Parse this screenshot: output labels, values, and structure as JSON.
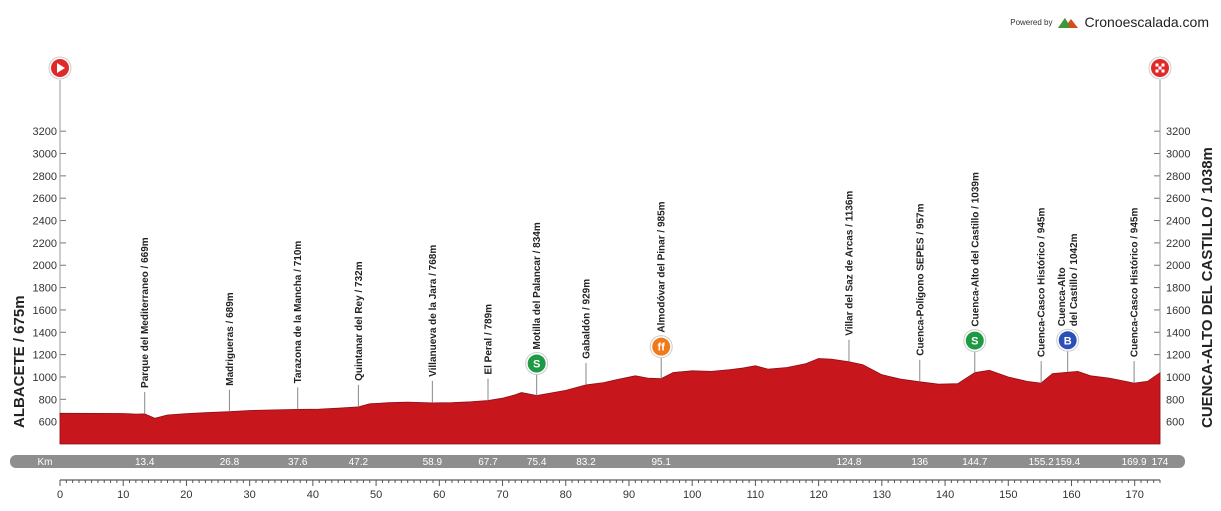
{
  "branding": {
    "powered_by": "Powered by",
    "site": "Cronoescalada.com"
  },
  "chart_data": {
    "type": "area",
    "title": "",
    "xlabel": "Km",
    "ylabel": "",
    "xlim": [
      0,
      174
    ],
    "ylim": [
      400,
      3300
    ],
    "x_ticks": [
      0,
      10,
      20,
      30,
      40,
      50,
      60,
      70,
      80,
      90,
      100,
      110,
      120,
      130,
      140,
      150,
      160,
      170
    ],
    "y_ticks": [
      600,
      800,
      1000,
      1200,
      1400,
      1600,
      1800,
      2000,
      2200,
      2400,
      2600,
      2800,
      3000,
      3200
    ],
    "fill_color": "#c8161d",
    "start_label": "ALBACETE / 675m",
    "finish_label": "CUENCA-ALTO DEL CASTILLO / 1038m",
    "km_axis_label": "Km",
    "km_markers": [
      {
        "km": 13.4,
        "label": "13.4"
      },
      {
        "km": 26.8,
        "label": "26.8"
      },
      {
        "km": 37.6,
        "label": "37.6"
      },
      {
        "km": 47.2,
        "label": "47.2"
      },
      {
        "km": 58.9,
        "label": "58.9"
      },
      {
        "km": 67.7,
        "label": "67.7"
      },
      {
        "km": 75.4,
        "label": "75.4"
      },
      {
        "km": 83.2,
        "label": "83.2"
      },
      {
        "km": 95.1,
        "label": "95.1"
      },
      {
        "km": 124.8,
        "label": "124.8"
      },
      {
        "km": 136,
        "label": "136"
      },
      {
        "km": 144.7,
        "label": "144.7"
      },
      {
        "km": 155.2,
        "label": "155.2"
      },
      {
        "km": 159.4,
        "label": "159.4"
      },
      {
        "km": 169.9,
        "label": "169.9"
      },
      {
        "km": 174,
        "label": "174"
      }
    ],
    "waypoints": [
      {
        "km": 13.4,
        "name": "Parque del Mediterraneo / 669m"
      },
      {
        "km": 26.8,
        "name": "Madrigueras / 689m"
      },
      {
        "km": 37.6,
        "name": "Tarazona de la Mancha / 710m"
      },
      {
        "km": 47.2,
        "name": "Quintanar del Rey / 732m"
      },
      {
        "km": 58.9,
        "name": "Villanueva de la Jara / 768m"
      },
      {
        "km": 67.7,
        "name": "El Peral / 789m"
      },
      {
        "km": 75.4,
        "name": "Motilla del Palancar / 834m",
        "badge": "sprint"
      },
      {
        "km": 83.2,
        "name": "Gabaldón / 929m"
      },
      {
        "km": 95.1,
        "name": "Almodóvar del Pinar / 985m",
        "badge": "feed"
      },
      {
        "km": 124.8,
        "name": "Villar del Saz de Arcas / 1136m"
      },
      {
        "km": 136,
        "name": "Cuenca-Polígono SEPES / 957m"
      },
      {
        "km": 144.7,
        "name": "Cuenca-Alto del Castillo / 1039m",
        "badge": "sprint"
      },
      {
        "km": 155.2,
        "name": "Cuenca-Casco Histórico / 945m"
      },
      {
        "km": 159.4,
        "name": "Cuenca-Alto\ndel Castillo / 1042m",
        "badge": "bonus"
      },
      {
        "km": 169.9,
        "name": "Cuenca-Casco Histórico / 945m"
      }
    ],
    "profile": [
      [
        0,
        675
      ],
      [
        10,
        673
      ],
      [
        12,
        668
      ],
      [
        13.4,
        669
      ],
      [
        15,
        630
      ],
      [
        17,
        660
      ],
      [
        20,
        672
      ],
      [
        23,
        680
      ],
      [
        26.8,
        689
      ],
      [
        30,
        700
      ],
      [
        34,
        705
      ],
      [
        37.6,
        710
      ],
      [
        41,
        712
      ],
      [
        44,
        720
      ],
      [
        47.2,
        732
      ],
      [
        49,
        760
      ],
      [
        52,
        770
      ],
      [
        55,
        775
      ],
      [
        58.9,
        768
      ],
      [
        62,
        770
      ],
      [
        65,
        778
      ],
      [
        67.7,
        789
      ],
      [
        70,
        810
      ],
      [
        72,
        840
      ],
      [
        73,
        860
      ],
      [
        75.4,
        834
      ],
      [
        78,
        860
      ],
      [
        80,
        880
      ],
      [
        83.2,
        929
      ],
      [
        86,
        950
      ],
      [
        88,
        975
      ],
      [
        91,
        1010
      ],
      [
        93,
        990
      ],
      [
        95.1,
        985
      ],
      [
        97,
        1040
      ],
      [
        100,
        1055
      ],
      [
        103,
        1050
      ],
      [
        106,
        1065
      ],
      [
        108,
        1080
      ],
      [
        110,
        1100
      ],
      [
        112,
        1070
      ],
      [
        115,
        1085
      ],
      [
        118,
        1120
      ],
      [
        120,
        1165
      ],
      [
        122,
        1160
      ],
      [
        124.8,
        1136
      ],
      [
        127,
        1110
      ],
      [
        130,
        1020
      ],
      [
        133,
        980
      ],
      [
        136,
        957
      ],
      [
        139,
        935
      ],
      [
        142,
        940
      ],
      [
        144.7,
        1039
      ],
      [
        147,
        1060
      ],
      [
        150,
        1000
      ],
      [
        153,
        960
      ],
      [
        155.2,
        945
      ],
      [
        157,
        1030
      ],
      [
        159.4,
        1042
      ],
      [
        161,
        1050
      ],
      [
        163,
        1010
      ],
      [
        166,
        990
      ],
      [
        169.9,
        945
      ],
      [
        172,
        960
      ],
      [
        174,
        1038
      ]
    ]
  }
}
